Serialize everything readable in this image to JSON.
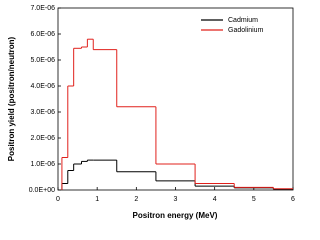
{
  "chart_data": {
    "type": "histogram",
    "x_label": "Positron energy (MeV)",
    "y_label": "Positron yield (positron/neutron)",
    "bins": [
      0.1,
      0.25,
      0.4,
      0.6,
      0.75,
      0.9,
      1.5,
      2.5,
      3.5,
      4.5,
      5.5,
      6
    ],
    "series": [
      {
        "name": "Cadmium",
        "color": "#000000",
        "values": [
          2.5e-07,
          7.5e-07,
          1e-06,
          1.1e-06,
          1.15e-06,
          1.15e-06,
          7e-07,
          3.5e-07,
          1.5e-07,
          8e-08,
          3e-08
        ]
      },
      {
        "name": "Gadolinium",
        "color": "#e0201b",
        "values": [
          1.25e-06,
          4e-06,
          5.45e-06,
          5.5e-06,
          5.8e-06,
          5.4e-06,
          3.2e-06,
          1e-06,
          2.5e-07,
          1e-07,
          5e-08
        ]
      }
    ],
    "xlim": [
      0,
      6
    ],
    "xticks": [
      0,
      1,
      2,
      3,
      4,
      5,
      6
    ],
    "ylim": [
      0,
      7e-06
    ],
    "yticks": [
      {
        "value": 0,
        "label": "0.0E+00"
      },
      {
        "value": 1e-06,
        "label": "1.0E-06"
      },
      {
        "value": 2e-06,
        "label": "2.0E-06"
      },
      {
        "value": 3e-06,
        "label": "3.0E-06"
      },
      {
        "value": 4e-06,
        "label": "4.0E-06"
      },
      {
        "value": 5e-06,
        "label": "5.0E-06"
      },
      {
        "value": 6e-06,
        "label": "6.0E-06"
      },
      {
        "value": 7e-06,
        "label": "7.0E-06"
      }
    ],
    "legend": "upper right",
    "grid": false
  }
}
